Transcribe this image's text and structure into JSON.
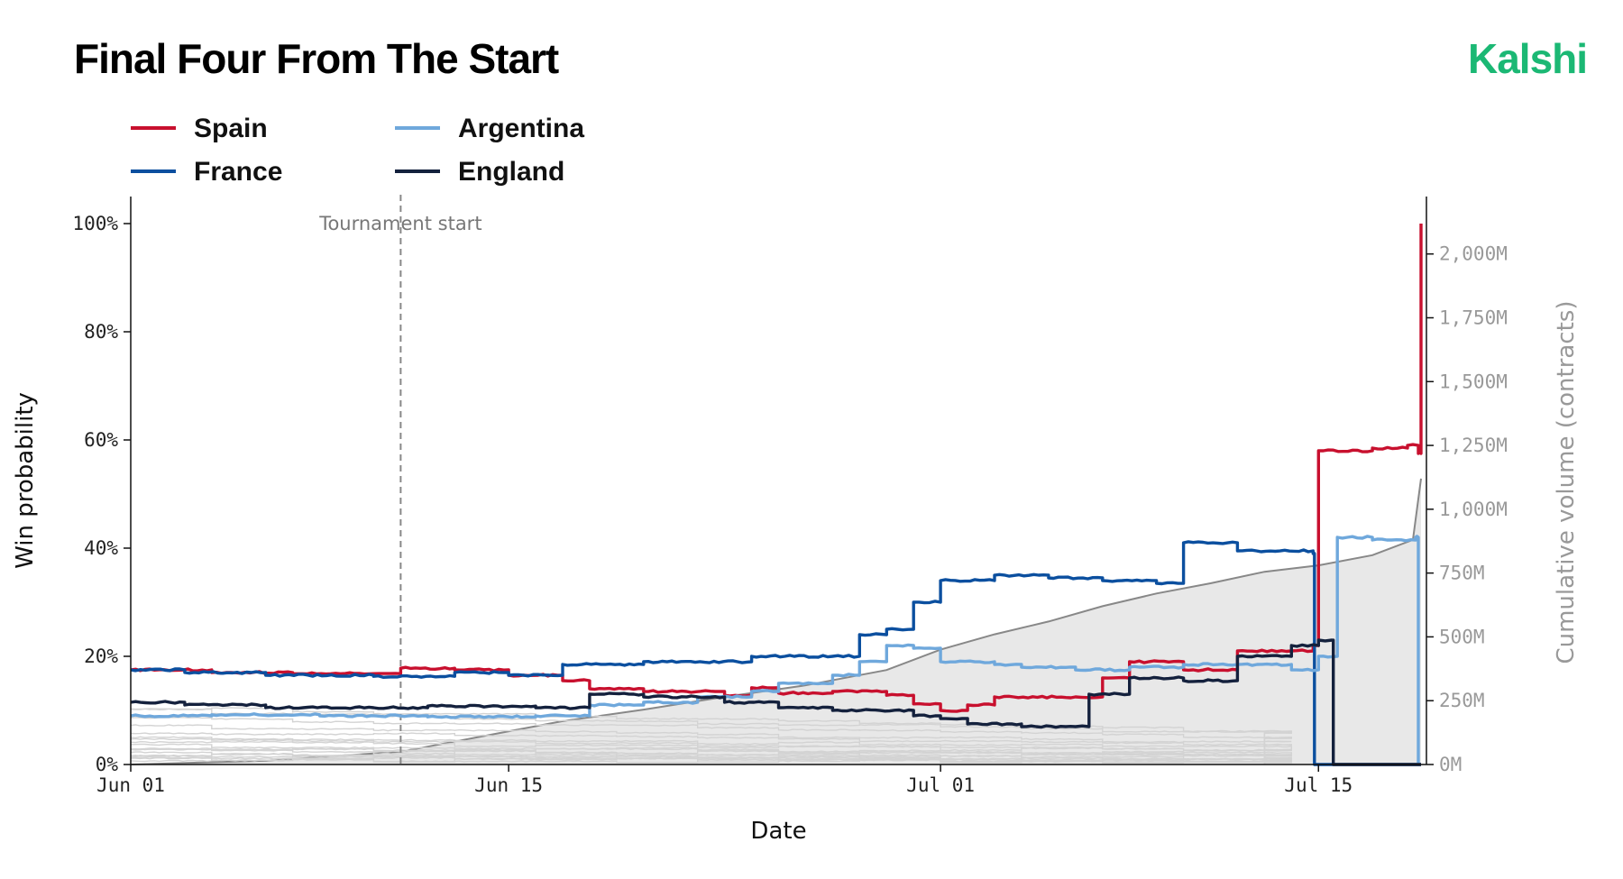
{
  "header": {
    "title": "Final Four From The Start",
    "brand": "Kalshi",
    "brand_color": "#1bb874"
  },
  "chart_data": {
    "type": "line",
    "title": "Final Four From The Start",
    "xlabel": "Date",
    "ylabel": "Win probability",
    "y2label": "Cumulative volume (contracts)",
    "xlim": [
      "2026-06-01",
      "2026-07-19"
    ],
    "ylim": [
      0,
      1.05
    ],
    "y2lim": [
      0,
      2225
    ],
    "x_ticks": [
      {
        "date": "2026-06-01",
        "label": "Jun 01"
      },
      {
        "date": "2026-06-15",
        "label": "Jun 15"
      },
      {
        "date": "2026-07-01",
        "label": "Jul 01"
      },
      {
        "date": "2026-07-15",
        "label": "Jul 15"
      }
    ],
    "y_ticks": [
      {
        "value": 0,
        "label": "0%"
      },
      {
        "value": 0.2,
        "label": "20%"
      },
      {
        "value": 0.4,
        "label": "40%"
      },
      {
        "value": 0.6,
        "label": "60%"
      },
      {
        "value": 0.8,
        "label": "80%"
      },
      {
        "value": 1.0,
        "label": "100%"
      }
    ],
    "y2_ticks": [
      {
        "value": 0,
        "label": "0M"
      },
      {
        "value": 250,
        "label": "250M"
      },
      {
        "value": 500,
        "label": "500M"
      },
      {
        "value": 750,
        "label": "750M"
      },
      {
        "value": 1000,
        "label": "1,000M"
      },
      {
        "value": 1250,
        "label": "1,250M"
      },
      {
        "value": 1500,
        "label": "1,500M"
      },
      {
        "value": 1750,
        "label": "1,750M"
      },
      {
        "value": 2000,
        "label": "2,000M"
      }
    ],
    "grid": false,
    "legend_position": "top-left",
    "annotations": [
      {
        "date": "2026-06-11",
        "label": "Tournament start"
      }
    ],
    "series": [
      {
        "name": "Spain",
        "color": "#c8102e",
        "points": [
          [
            "2026-06-01",
            0.175
          ],
          [
            "2026-06-04",
            0.17
          ],
          [
            "2026-06-07",
            0.168
          ],
          [
            "2026-06-10",
            0.168
          ],
          [
            "2026-06-11",
            0.178
          ],
          [
            "2026-06-13",
            0.175
          ],
          [
            "2026-06-15",
            0.165
          ],
          [
            "2026-06-17",
            0.155
          ],
          [
            "2026-06-18",
            0.14
          ],
          [
            "2026-06-20",
            0.135
          ],
          [
            "2026-06-23",
            0.128
          ],
          [
            "2026-06-24",
            0.142
          ],
          [
            "2026-06-25",
            0.132
          ],
          [
            "2026-06-27",
            0.135
          ],
          [
            "2026-06-29",
            0.128
          ],
          [
            "2026-06-30",
            0.112
          ],
          [
            "2026-07-01",
            0.1
          ],
          [
            "2026-07-02",
            0.11
          ],
          [
            "2026-07-03",
            0.125
          ],
          [
            "2026-07-06",
            0.125
          ],
          [
            "2026-07-07",
            0.16
          ],
          [
            "2026-07-08",
            0.19
          ],
          [
            "2026-07-10",
            0.175
          ],
          [
            "2026-07-12",
            0.21
          ],
          [
            "2026-07-14",
            0.21
          ],
          [
            "2026-07-14.8",
            0.22
          ],
          [
            "2026-07-15",
            0.58
          ],
          [
            "2026-07-17",
            0.585
          ],
          [
            "2026-07-18.3",
            0.59
          ],
          [
            "2026-07-18.7",
            0.575
          ],
          [
            "2026-07-18.8",
            1.0
          ]
        ]
      },
      {
        "name": "France",
        "color": "#0b4f9f",
        "points": [
          [
            "2026-06-01",
            0.175
          ],
          [
            "2026-06-03",
            0.17
          ],
          [
            "2026-06-06",
            0.165
          ],
          [
            "2026-06-10",
            0.163
          ],
          [
            "2026-06-13",
            0.17
          ],
          [
            "2026-06-15",
            0.165
          ],
          [
            "2026-06-17",
            0.185
          ],
          [
            "2026-06-20",
            0.19
          ],
          [
            "2026-06-24",
            0.2
          ],
          [
            "2026-06-27",
            0.2
          ],
          [
            "2026-06-28",
            0.24
          ],
          [
            "2026-06-29",
            0.25
          ],
          [
            "2026-06-30",
            0.3
          ],
          [
            "2026-07-01",
            0.34
          ],
          [
            "2026-07-03",
            0.35
          ],
          [
            "2026-07-05",
            0.345
          ],
          [
            "2026-07-07",
            0.34
          ],
          [
            "2026-07-09",
            0.335
          ],
          [
            "2026-07-10",
            0.41
          ],
          [
            "2026-07-12",
            0.395
          ],
          [
            "2026-07-14.8",
            0.39
          ],
          [
            "2026-07-14.85",
            0.0
          ],
          [
            "2026-07-18.8",
            0.0
          ]
        ]
      },
      {
        "name": "Argentina",
        "color": "#6fa8dc",
        "points": [
          [
            "2026-06-01",
            0.09
          ],
          [
            "2026-06-04",
            0.092
          ],
          [
            "2026-06-08",
            0.09
          ],
          [
            "2026-06-12",
            0.088
          ],
          [
            "2026-06-16",
            0.09
          ],
          [
            "2026-06-18",
            0.11
          ],
          [
            "2026-06-20",
            0.115
          ],
          [
            "2026-06-22",
            0.125
          ],
          [
            "2026-06-24",
            0.135
          ],
          [
            "2026-06-25",
            0.15
          ],
          [
            "2026-06-27",
            0.165
          ],
          [
            "2026-06-28",
            0.19
          ],
          [
            "2026-06-29",
            0.22
          ],
          [
            "2026-06-30",
            0.215
          ],
          [
            "2026-07-01",
            0.19
          ],
          [
            "2026-07-03",
            0.185
          ],
          [
            "2026-07-04",
            0.18
          ],
          [
            "2026-07-06",
            0.175
          ],
          [
            "2026-07-08",
            0.18
          ],
          [
            "2026-07-10",
            0.185
          ],
          [
            "2026-07-12",
            0.185
          ],
          [
            "2026-07-14",
            0.175
          ],
          [
            "2026-07-15",
            0.2
          ],
          [
            "2026-07-15.7",
            0.42
          ],
          [
            "2026-07-17",
            0.415
          ],
          [
            "2026-07-18.6",
            0.42
          ],
          [
            "2026-07-18.7",
            0.0
          ],
          [
            "2026-07-18.8",
            0.0
          ]
        ]
      },
      {
        "name": "England",
        "color": "#14213d",
        "points": [
          [
            "2026-06-01",
            0.115
          ],
          [
            "2026-06-03",
            0.11
          ],
          [
            "2026-06-06",
            0.105
          ],
          [
            "2026-06-10",
            0.105
          ],
          [
            "2026-06-12",
            0.108
          ],
          [
            "2026-06-16",
            0.105
          ],
          [
            "2026-06-18",
            0.13
          ],
          [
            "2026-06-20",
            0.125
          ],
          [
            "2026-06-23",
            0.115
          ],
          [
            "2026-06-25",
            0.105
          ],
          [
            "2026-06-27",
            0.1
          ],
          [
            "2026-06-30",
            0.09
          ],
          [
            "2026-07-01",
            0.085
          ],
          [
            "2026-07-02",
            0.075
          ],
          [
            "2026-07-04",
            0.07
          ],
          [
            "2026-07-06",
            0.07
          ],
          [
            "2026-07-06.5",
            0.13
          ],
          [
            "2026-07-08",
            0.16
          ],
          [
            "2026-07-10",
            0.155
          ],
          [
            "2026-07-12",
            0.2
          ],
          [
            "2026-07-14",
            0.22
          ],
          [
            "2026-07-15",
            0.23
          ],
          [
            "2026-07-15.5",
            0.23
          ],
          [
            "2026-07-15.55",
            0.0
          ],
          [
            "2026-07-18.8",
            0.0
          ]
        ]
      }
    ],
    "other_series": {
      "color": "#d3d3d3",
      "endpoints": [
        [
          0.105,
          0.06
        ],
        [
          0.1,
          0.055
        ],
        [
          0.085,
          0.05
        ],
        [
          0.07,
          0.04
        ],
        [
          0.06,
          0.035
        ],
        [
          0.05,
          0.03
        ],
        [
          0.045,
          0.028
        ],
        [
          0.04,
          0.025
        ],
        [
          0.035,
          0.02
        ],
        [
          0.03,
          0.02
        ],
        [
          0.028,
          0.018
        ],
        [
          0.025,
          0.015
        ],
        [
          0.02,
          0.012
        ],
        [
          0.018,
          0.01
        ],
        [
          0.015,
          0.008
        ],
        [
          0.012,
          0.006
        ],
        [
          0.01,
          0.005
        ],
        [
          0.008,
          0.004
        ]
      ]
    },
    "volume": {
      "color": "#888888",
      "fill": "#e8e8e8",
      "points": [
        [
          "2026-06-01",
          0
        ],
        [
          "2026-06-06",
          15
        ],
        [
          "2026-06-11",
          50
        ],
        [
          "2026-06-14",
          110
        ],
        [
          "2026-06-17",
          170
        ],
        [
          "2026-06-20",
          215
        ],
        [
          "2026-06-23",
          265
        ],
        [
          "2026-06-26",
          310
        ],
        [
          "2026-06-29",
          370
        ],
        [
          "2026-07-01",
          450
        ],
        [
          "2026-07-03",
          510
        ],
        [
          "2026-07-05",
          560
        ],
        [
          "2026-07-07",
          620
        ],
        [
          "2026-07-09",
          670
        ],
        [
          "2026-07-11",
          710
        ],
        [
          "2026-07-13",
          755
        ],
        [
          "2026-07-15",
          780
        ],
        [
          "2026-07-17",
          820
        ],
        [
          "2026-07-18.5",
          880
        ],
        [
          "2026-07-18.8",
          1120
        ]
      ]
    }
  }
}
